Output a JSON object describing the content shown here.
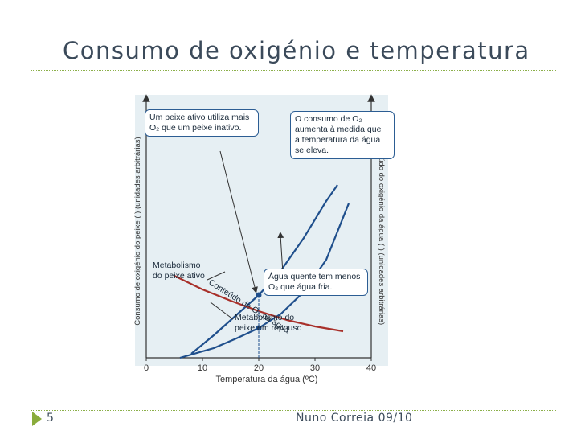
{
  "slide": {
    "title": "Consumo de oxigénio e temperatura",
    "slide_number": "5",
    "footer": "Nuno Correia 09/10",
    "accent_color": "#8aac3c"
  },
  "chart_data": {
    "type": "line",
    "xlabel": "Temperatura da água  (ºC)",
    "ylabel_left": "Consumo de oxigénio do peixe  (    ) (unidades arbitrárias)",
    "ylabel_right": "Conteúdo do oxigénio da água  (    ) (unidades arbitrárias)",
    "xlim": [
      0,
      40
    ],
    "x_ticks": [
      "0",
      "10",
      "20",
      "30",
      "40"
    ],
    "series": [
      {
        "name": "Metabolismo do peixe ativo",
        "color": "#1f4f8c",
        "x": [
          8,
          12,
          16,
          20,
          24,
          28,
          32,
          34
        ],
        "y": [
          5,
          28,
          53,
          78,
          109,
          149,
          195,
          215
        ]
      },
      {
        "name": "Metabolismo do peixe em repouso",
        "color": "#1f4f8c",
        "x": [
          6,
          12,
          16,
          20,
          24,
          28,
          32,
          36
        ],
        "y": [
          0,
          12,
          24,
          37,
          55,
          82,
          122,
          192
        ]
      },
      {
        "name": "Conteúdo de O2 na água",
        "color": "#a8302a",
        "x": [
          5,
          10,
          15,
          20,
          25,
          30,
          35
        ],
        "y": [
          102,
          85,
          71,
          58,
          47,
          39,
          33
        ]
      }
    ],
    "points": [
      {
        "x": 20,
        "y": 78
      },
      {
        "x": 20,
        "y": 37
      }
    ],
    "annotations": {
      "active_fish": [
        "Um peixe ativo utiliza mais",
        "O₂ que um peixe inativo."
      ],
      "consumption_rise": [
        "O consumo de O₂",
        "aumenta à medida que",
        "a temperatura da água",
        "se eleva."
      ],
      "warm_water": [
        "Água quente tem menos",
        "O₂ que água fria."
      ],
      "active_label": [
        "Metabolismo",
        "do peixe ativo"
      ],
      "rest_label": [
        "Metabolismo do",
        "peixe em repouso"
      ],
      "o2_content_label": "Conteúdo de O₂ na água"
    }
  }
}
